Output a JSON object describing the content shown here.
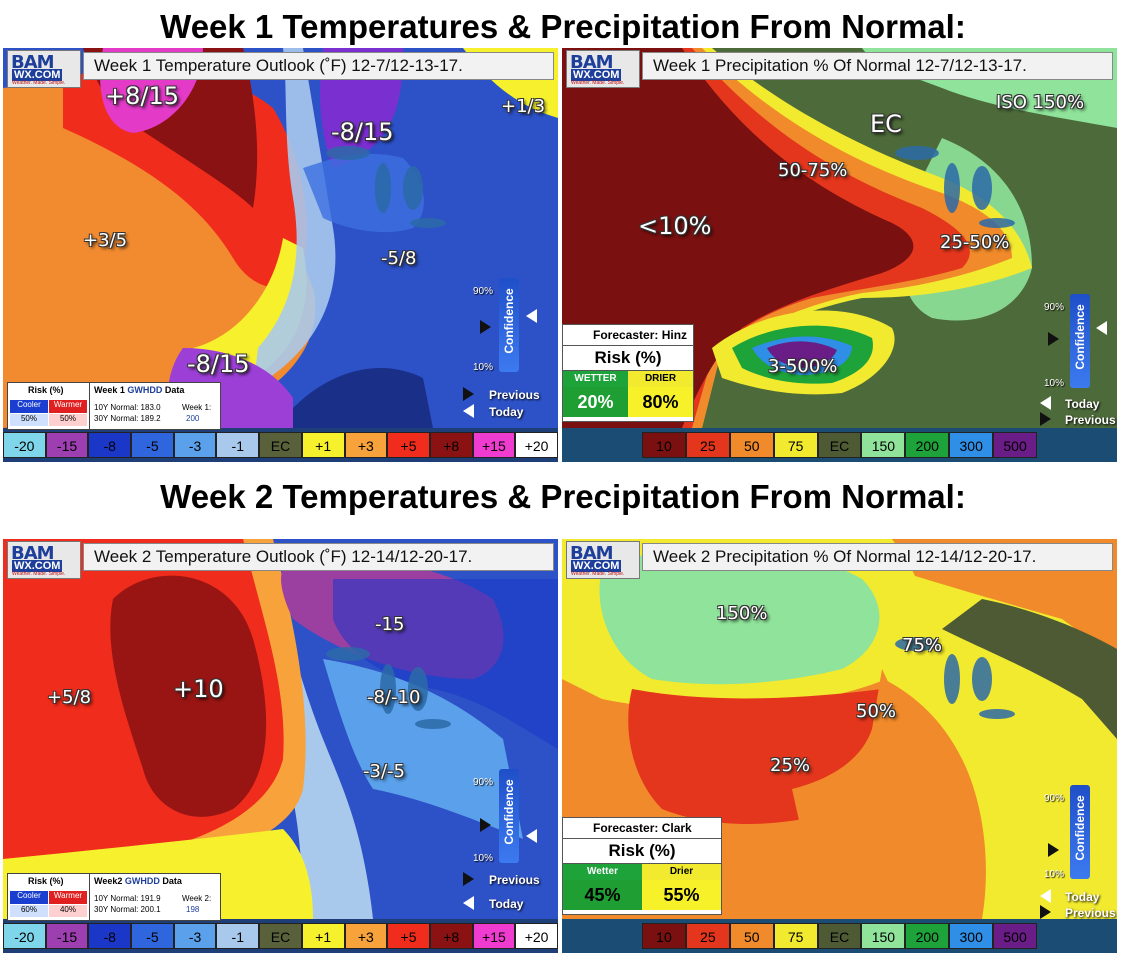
{
  "headings": {
    "week1": "Week 1 Temperatures & Precipitation From Normal:",
    "week2": "Week 2 Temperatures & Precipitation From Normal:"
  },
  "brand": {
    "line1": "BAM",
    "line2": "WX.COM",
    "tagline": "Weather. Made. Simple."
  },
  "temp_legend": [
    {
      "label": "-20",
      "color": "#7fd6ea",
      "text": "#000"
    },
    {
      "label": "-15",
      "color": "#9d3fb1",
      "text": "#000"
    },
    {
      "label": "-8",
      "color": "#1a37c8",
      "text": "#000"
    },
    {
      "label": "-5",
      "color": "#2f66de",
      "text": "#000"
    },
    {
      "label": "-3",
      "color": "#5aa0ea",
      "text": "#000"
    },
    {
      "label": "-1",
      "color": "#a9c9ec",
      "text": "#000"
    },
    {
      "label": "EC",
      "color": "#59613a",
      "text": "#000"
    },
    {
      "label": "+1",
      "color": "#f6f12c",
      "text": "#000"
    },
    {
      "label": "+3",
      "color": "#f7a23a",
      "text": "#000"
    },
    {
      "label": "+5",
      "color": "#f02c1c",
      "text": "#000"
    },
    {
      "label": "+8",
      "color": "#8a1212",
      "text": "#000"
    },
    {
      "label": "+15",
      "color": "#f03bd0",
      "text": "#000"
    },
    {
      "label": "+20",
      "color": "#ffffff",
      "text": "#000"
    }
  ],
  "precip_legend": [
    {
      "label": "10",
      "color": "#7a1010",
      "text": "#000"
    },
    {
      "label": "25",
      "color": "#e3361c",
      "text": "#000"
    },
    {
      "label": "50",
      "color": "#f08a2a",
      "text": "#000"
    },
    {
      "label": "75",
      "color": "#f2ea2e",
      "text": "#000"
    },
    {
      "label": "EC",
      "color": "#4d5a34",
      "text": "#000"
    },
    {
      "label": "150",
      "color": "#8fe39a",
      "text": "#000"
    },
    {
      "label": "200",
      "color": "#1da33a",
      "text": "#000"
    },
    {
      "label": "300",
      "color": "#2f8ee6",
      "text": "#000"
    },
    {
      "label": "500",
      "color": "#6a1d86",
      "text": "#000"
    }
  ],
  "confidence": {
    "label": "Confidence",
    "high": "90%",
    "low": "10%",
    "previous": "Previous",
    "today": "Today"
  },
  "panels": {
    "w1temp": {
      "title": "Week 1 Temperature Outlook (˚F) 12-7/12-13-17.",
      "regions": [
        "+8/15",
        "-8/15",
        "+1/3",
        "+3/5",
        "-5/8",
        "-8/15"
      ],
      "risk": {
        "title": "Risk (%)",
        "cooler": "Cooler",
        "warmer": "Warmer",
        "cooler_pct": "50%",
        "warmer_pct": "50%"
      },
      "gwhdd": {
        "prefix": "Week 1",
        "brand": "GWHDD",
        "suffix": "Data",
        "n10": "10Y Normal: 183.0",
        "n30": "30Y Normal: 189.2",
        "wk": "Week 1:",
        "val": "200"
      }
    },
    "w1precip": {
      "title": "Week 1 Precipitation % Of Normal 12-7/12-13-17.",
      "regions": [
        "EC",
        "ISO 150%",
        "50-75%",
        "<10%",
        "25-50%",
        "3-500%"
      ],
      "forecast": {
        "forecaster": "Forecaster: Hinz",
        "risk": "Risk (%)",
        "wet_label": "WETTER",
        "dry_label": "DRIER",
        "wet": "20%",
        "dry": "80%"
      }
    },
    "w2temp": {
      "title": "Week 2 Temperature Outlook (˚F) 12-14/12-20-17.",
      "regions": [
        "-15",
        "+10",
        "+5/8",
        "-8/-10",
        "-3/-5"
      ],
      "risk": {
        "title": "Risk (%)",
        "cooler": "Cooler",
        "warmer": "Warmer",
        "cooler_pct": "60%",
        "warmer_pct": "40%"
      },
      "gwhdd": {
        "prefix": "Week2",
        "brand": "GWHDD",
        "suffix": "Data",
        "n10": "10Y Normal: 191.9",
        "n30": "30Y Normal: 200.1",
        "wk": "Week 2:",
        "val": "198"
      }
    },
    "w2precip": {
      "title": "Week 2 Precipitation % Of Normal 12-14/12-20-17.",
      "regions": [
        "150%",
        "75%",
        "50%",
        "25%"
      ],
      "forecast": {
        "forecaster": "Forecaster: Clark",
        "risk": "Risk (%)",
        "wet_label": "Wetter",
        "dry_label": "Drier",
        "wet": "45%",
        "dry": "55%"
      }
    }
  }
}
